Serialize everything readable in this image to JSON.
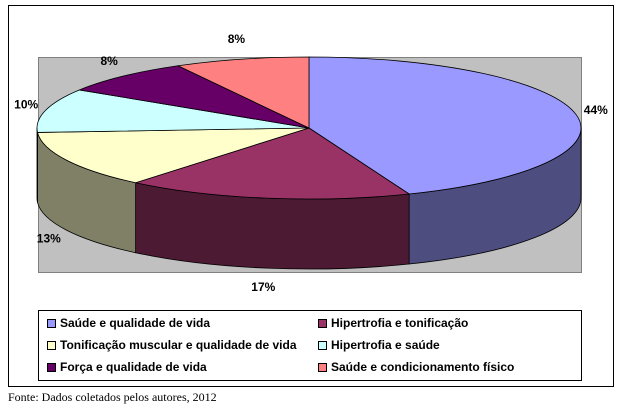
{
  "chart_data": {
    "type": "pie",
    "categories": [
      "Saúde e qualidade de vida",
      "Hipertrofia e tonificação",
      "Tonificação muscular e qualidade de vida",
      "Hipertrofia e saúde",
      "Força e qualidade de vida",
      "Saúde e condicionamento físico"
    ],
    "values": [
      44,
      17,
      13,
      10,
      8,
      8
    ],
    "value_labels": [
      "44%",
      "17%",
      "13%",
      "10%",
      "8%",
      "8%"
    ],
    "colors": [
      "#9999ff",
      "#993366",
      "#ffffcc",
      "#ccffff",
      "#660066",
      "#ff8080"
    ],
    "source": "Fonte: Dados coletados pelos autores, 2012"
  }
}
